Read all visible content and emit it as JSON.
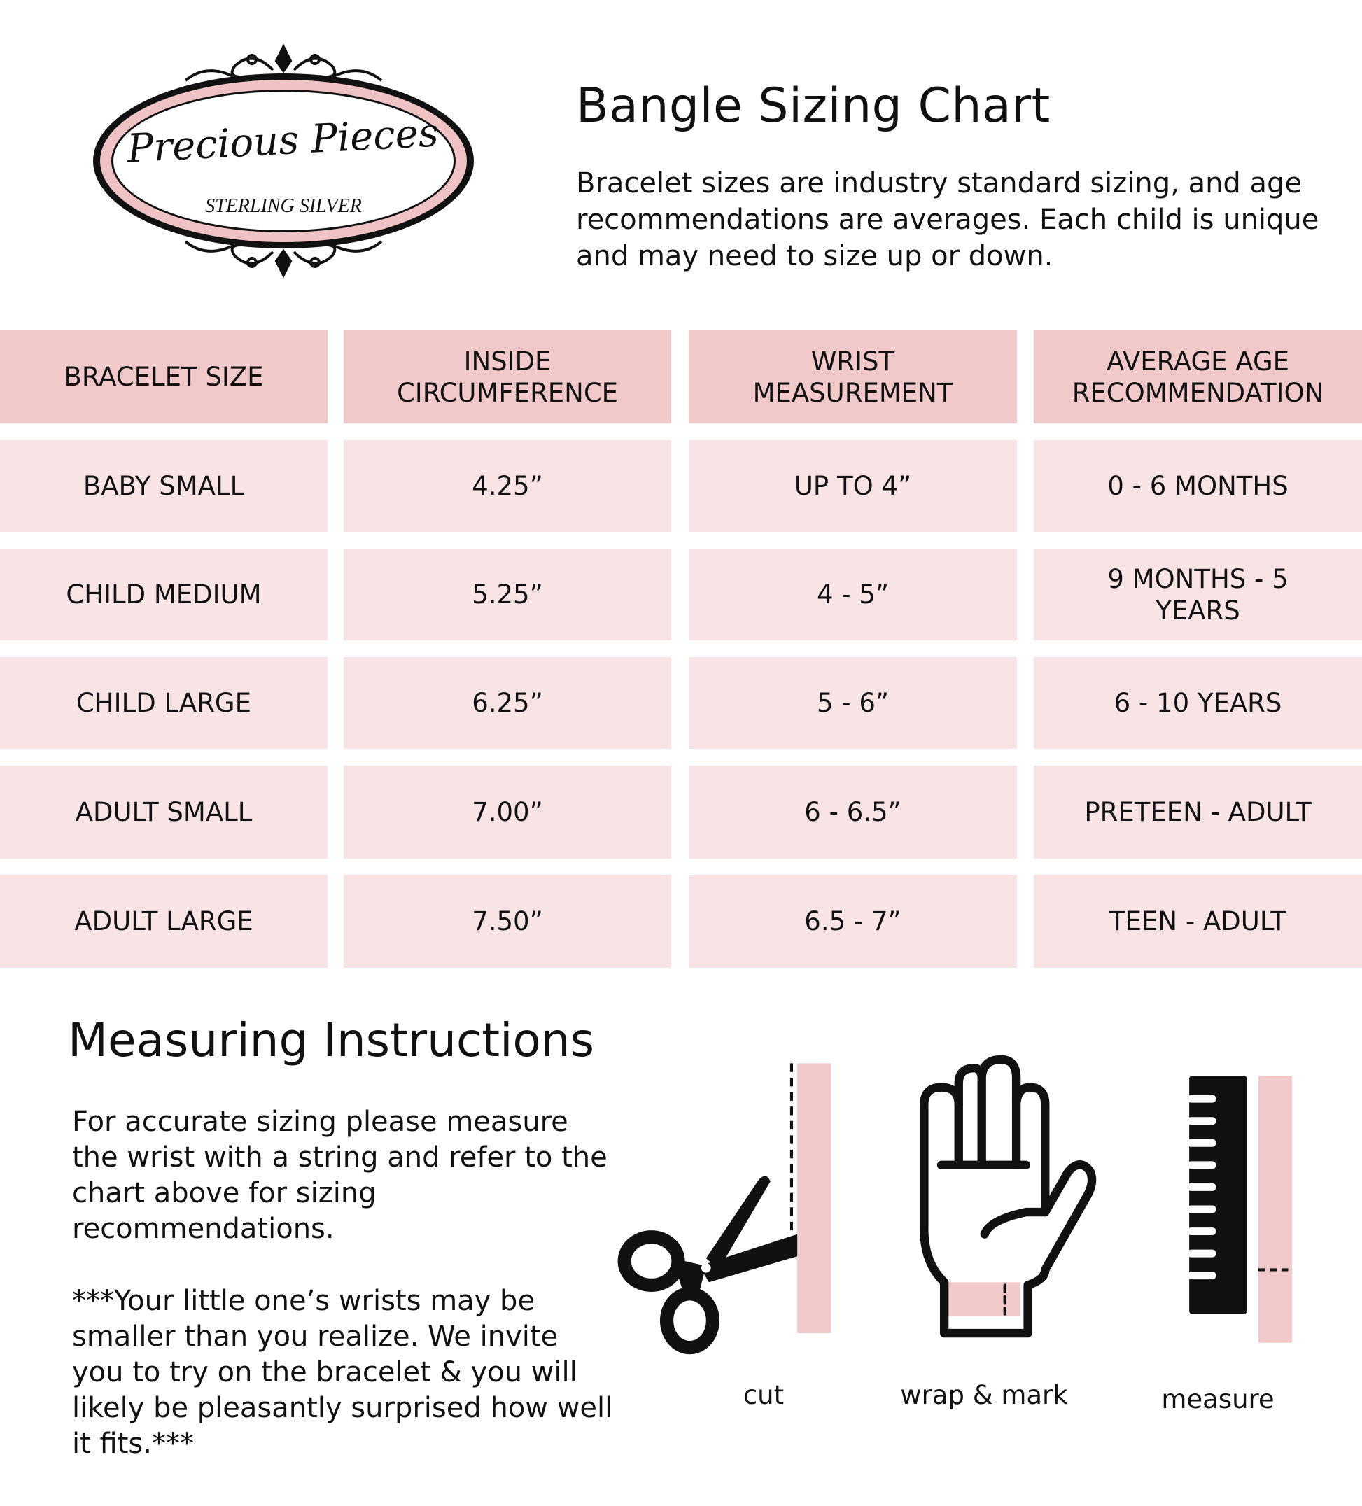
{
  "logo": {
    "brand": "Precious Pieces",
    "tagline": "STERLING SILVER"
  },
  "header": {
    "title": "Bangle Sizing Chart",
    "intro": "Bracelet sizes are industry standard sizing, and age recommendations are averages. Each child is unique and may need to size up or down."
  },
  "table": {
    "columns": [
      "BRACELET SIZE",
      "INSIDE CIRCUMFERENCE",
      "WRIST MEASUREMENT",
      "AVERAGE AGE RECOMMENDATION"
    ],
    "rows": [
      [
        "BABY SMALL",
        "4.25”",
        "UP TO 4”",
        "0 - 6 MONTHS"
      ],
      [
        "CHILD MEDIUM",
        "5.25”",
        "4 - 5”",
        "9 MONTHS - 5 YEARS"
      ],
      [
        "CHILD LARGE",
        "6.25”",
        "5 - 6”",
        "6 - 10 YEARS"
      ],
      [
        "ADULT SMALL",
        "7.00”",
        "6 - 6.5”",
        "PRETEEN - ADULT"
      ],
      [
        "ADULT LARGE",
        "7.50”",
        "6.5 - 7”",
        "TEEN - ADULT"
      ]
    ],
    "header_color": "#f2c9cb",
    "row_color": "#f8e4e5"
  },
  "instructions": {
    "title": "Measuring Instructions",
    "paragraph1": "For accurate sizing please measure the wrist with a string and refer to the chart above for sizing recommendations.",
    "paragraph2": "***Your little one’s wrists may be smaller than you realize. We invite you to try on the bracelet & you will likely be pleasantly surprised how well it fits.***",
    "steps": [
      {
        "icon": "scissors-icon",
        "label": "cut"
      },
      {
        "icon": "hand-icon",
        "label": "wrap & mark"
      },
      {
        "icon": "ruler-icon",
        "label": "measure"
      }
    ]
  }
}
